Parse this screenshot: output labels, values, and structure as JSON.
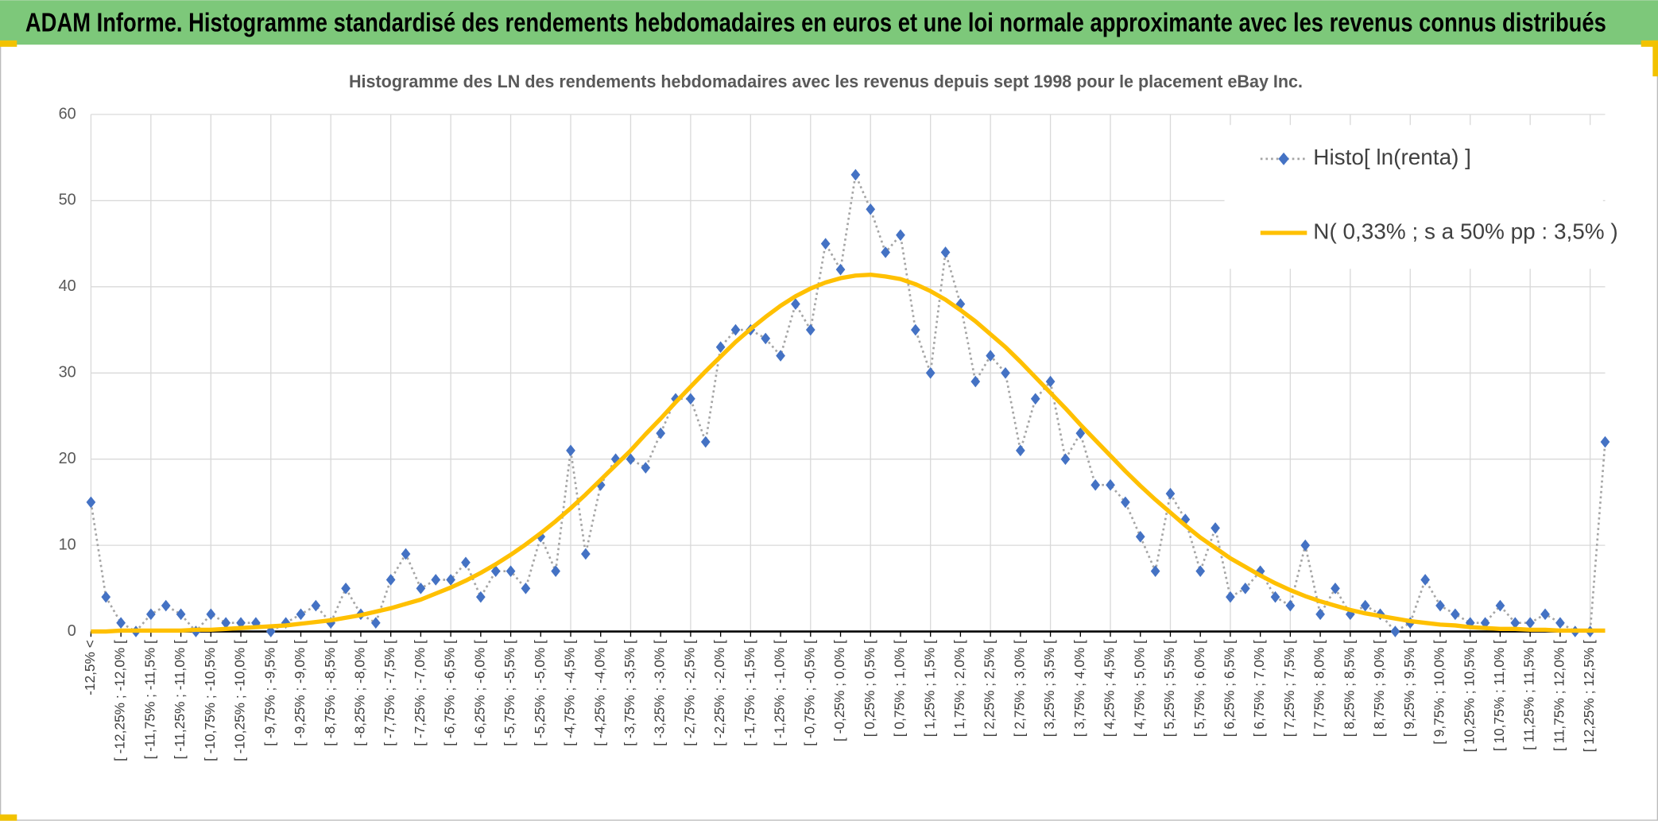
{
  "header": {
    "title": "ADAM Informe. Histogramme standardisé des rendements hebdomadaires en euros et une loi normale approximante avec les revenus connus distribués"
  },
  "chart_data": {
    "type": "line",
    "title": "Histogramme des LN des rendements hebdomadaires avec les revenus depuis sept 1998 pour le placement eBay Inc.",
    "categories": [
      "-12,5% <",
      null,
      "[ -12,25% ; -12,0% [",
      null,
      "[ -11,75% ; -11,5% [",
      null,
      "[ -11,25% ; -11,0% [",
      null,
      "[ -10,75% ; -10,5% [",
      null,
      "[ -10,25% ; -10,0% [",
      null,
      "[ -9,75% ; -9,5% [",
      null,
      "[ -9,25% ; -9,0% [",
      null,
      "[ -8,75% ; -8,5% [",
      null,
      "[ -8,25% ; -8,0% [",
      null,
      "[ -7,75% ; -7,5% [",
      null,
      "[ -7,25% ; -7,0% [",
      null,
      "[ -6,75% ; -6,5% [",
      null,
      "[ -6,25% ; -6,0% [",
      null,
      "[ -5,75% ; -5,5% [",
      null,
      "[ -5,25% ; -5,0% [",
      null,
      "[ -4,75% ; -4,5% [",
      null,
      "[ -4,25% ; -4,0% [",
      null,
      "[ -3,75% ; -3,5% [",
      null,
      "[ -3,25% ; -3,0% [",
      null,
      "[ -2,75% ; -2,5% [",
      null,
      "[ -2,25% ; -2,0% [",
      null,
      "[ -1,75% ; -1,5% [",
      null,
      "[ -1,25% ; -1,0% [",
      null,
      "[ -0,75% ; -0,5% [",
      null,
      "[ -0,25% ; 0,0% [",
      null,
      "[ 0,25% ; 0,5% [",
      null,
      "[ 0,75% ; 1,0% [",
      null,
      "[ 1,25% ; 1,5% [",
      null,
      "[ 1,75% ; 2,0% [",
      null,
      "[ 2,25% ; 2,5% [",
      null,
      "[ 2,75% ; 3,0% [",
      null,
      "[ 3,25% ; 3,5% [",
      null,
      "[ 3,75% ; 4,0% [",
      null,
      "[ 4,25% ; 4,5% [",
      null,
      "[ 4,75% ; 5,0% [",
      null,
      "[ 5,25% ; 5,5% [",
      null,
      "[ 5,75% ; 6,0% [",
      null,
      "[ 6,25% ; 6,5% [",
      null,
      "[ 6,75% ; 7,0% [",
      null,
      "[ 7,25% ; 7,5% [",
      null,
      "[ 7,75% ; 8,0% [",
      null,
      "[ 8,25% ; 8,5% [",
      null,
      "[ 8,75% ; 9,0% [",
      null,
      "[ 9,25% ; 9,5% [",
      null,
      "[ 9,75% ; 10,0% [",
      null,
      "[ 10,25% ; 10,5% [",
      null,
      "[ 10,75% ; 11,0% [",
      null,
      "[ 11,25% ; 11,5% [",
      null,
      "[ 11,75% ; 12,0% [",
      null,
      "[ 12,25% ; 12,5% [",
      null
    ],
    "series": [
      {
        "name": "Histo[ ln(renta) ]",
        "color": "#4472c4",
        "line_color": "#a5a5a5",
        "markers": true,
        "values": [
          15,
          4,
          1,
          0,
          2,
          3,
          2,
          0,
          2,
          1,
          1,
          1,
          0,
          1,
          2,
          3,
          1,
          5,
          2,
          1,
          6,
          9,
          5,
          6,
          6,
          8,
          4,
          7,
          7,
          5,
          11,
          7,
          21,
          9,
          17,
          20,
          20,
          19,
          23,
          27,
          27,
          22,
          33,
          35,
          35,
          34,
          32,
          38,
          35,
          45,
          42,
          53,
          49,
          44,
          46,
          35,
          30,
          44,
          38,
          29,
          32,
          30,
          21,
          27,
          29,
          20,
          23,
          17,
          17,
          15,
          11,
          7,
          16,
          13,
          7,
          12,
          4,
          5,
          7,
          4,
          3,
          10,
          2,
          5,
          2,
          3,
          2,
          0,
          1,
          6,
          3,
          2,
          1,
          1,
          3,
          1,
          1,
          2,
          1,
          0,
          0,
          22
        ]
      },
      {
        "name": "N( 0,33% ; s a 50% pp : 3,5% )",
        "color": "#ffc000",
        "markers": false,
        "values": [
          0.0,
          0.0,
          0.1,
          0.1,
          0.1,
          0.1,
          0.1,
          0.2,
          0.2,
          0.3,
          0.4,
          0.5,
          0.6,
          0.7,
          0.9,
          1.1,
          1.3,
          1.6,
          1.9,
          2.3,
          2.7,
          3.2,
          3.7,
          4.4,
          5.1,
          5.9,
          6.8,
          7.8,
          8.9,
          10.1,
          11.4,
          12.8,
          14.3,
          15.9,
          17.6,
          19.3,
          21.0,
          22.9,
          24.7,
          26.6,
          28.4,
          30.2,
          31.9,
          33.6,
          35.1,
          36.5,
          37.8,
          38.9,
          39.8,
          40.5,
          41.0,
          41.3,
          41.4,
          41.2,
          40.9,
          40.3,
          39.5,
          38.5,
          37.3,
          36.0,
          34.5,
          33.0,
          31.3,
          29.5,
          27.7,
          25.9,
          24.0,
          22.2,
          20.4,
          18.6,
          16.9,
          15.3,
          13.8,
          12.3,
          10.9,
          9.7,
          8.5,
          7.5,
          6.5,
          5.6,
          4.8,
          4.1,
          3.5,
          3.0,
          2.5,
          2.1,
          1.8,
          1.5,
          1.2,
          1.0,
          0.8,
          0.7,
          0.5,
          0.4,
          0.3,
          0.3,
          0.2,
          0.2,
          0.1,
          0.1,
          0.1,
          0.1
        ]
      }
    ],
    "ylim": [
      0,
      60
    ],
    "yticks": [
      0,
      10,
      20,
      30,
      40,
      50,
      60
    ],
    "grid": true,
    "legend": "top-right"
  }
}
